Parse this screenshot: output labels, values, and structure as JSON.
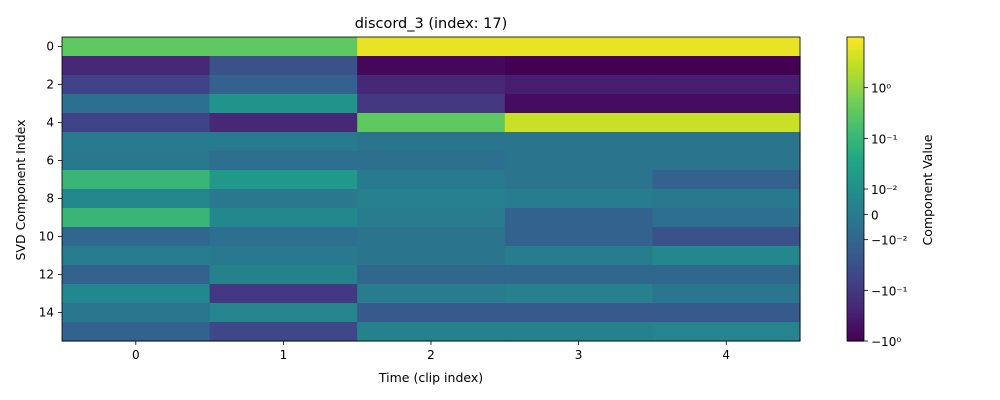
{
  "chart_data": {
    "type": "heatmap",
    "title": "discord_3 (index: 17)",
    "xlabel": "Time (clip index)",
    "ylabel": "SVD Component Index",
    "x_tick_labels": [
      "0",
      "1",
      "2",
      "3",
      "4"
    ],
    "y_tick_labels": [
      "0",
      "2",
      "4",
      "6",
      "8",
      "10",
      "12",
      "14"
    ],
    "x": [
      0,
      1,
      2,
      3,
      4
    ],
    "y": [
      0,
      1,
      2,
      3,
      4,
      5,
      6,
      7,
      8,
      9,
      10,
      11,
      12,
      13,
      14,
      15
    ],
    "colormap": "viridis",
    "color_scale": "symlog",
    "colorbar": {
      "label": "Component Value",
      "tick_labels": [
        "10^0",
        "10^-1",
        "10^-2",
        "0",
        "-10^-2",
        "-10^-1",
        "-10^0"
      ],
      "range": [
        -2.5,
        3.5
      ]
    },
    "grid": false,
    "values": [
      [
        2.0,
        2.0,
        3.3,
        3.3,
        3.3
      ],
      [
        -1.8,
        -1.0,
        -2.4,
        -2.5,
        -2.5
      ],
      [
        -1.3,
        -0.6,
        -1.8,
        -2.0,
        -2.0
      ],
      [
        -0.3,
        0.6,
        -1.5,
        -2.3,
        -2.3
      ],
      [
        -1.3,
        -1.8,
        2.0,
        3.0,
        3.0
      ],
      [
        -0.03,
        -0.03,
        -0.2,
        -0.2,
        -0.2
      ],
      [
        -0.08,
        -0.3,
        -0.3,
        -0.2,
        -0.2
      ],
      [
        1.5,
        0.7,
        -0.05,
        -0.2,
        -0.6
      ],
      [
        0.25,
        -0.1,
        0.1,
        0.03,
        -0.07
      ],
      [
        1.5,
        0.3,
        0.0,
        -0.6,
        -0.3
      ],
      [
        -0.5,
        -0.3,
        -0.2,
        -0.6,
        -1.0
      ],
      [
        0.02,
        -0.08,
        -0.2,
        0.02,
        0.3
      ],
      [
        -0.6,
        0.15,
        -0.5,
        -0.5,
        -0.5
      ],
      [
        0.3,
        -1.5,
        0.0,
        0.1,
        -0.15
      ],
      [
        -0.15,
        0.2,
        -0.8,
        -0.8,
        -0.8
      ],
      [
        -0.6,
        -1.2,
        0.15,
        0.15,
        0.2
      ]
    ]
  }
}
